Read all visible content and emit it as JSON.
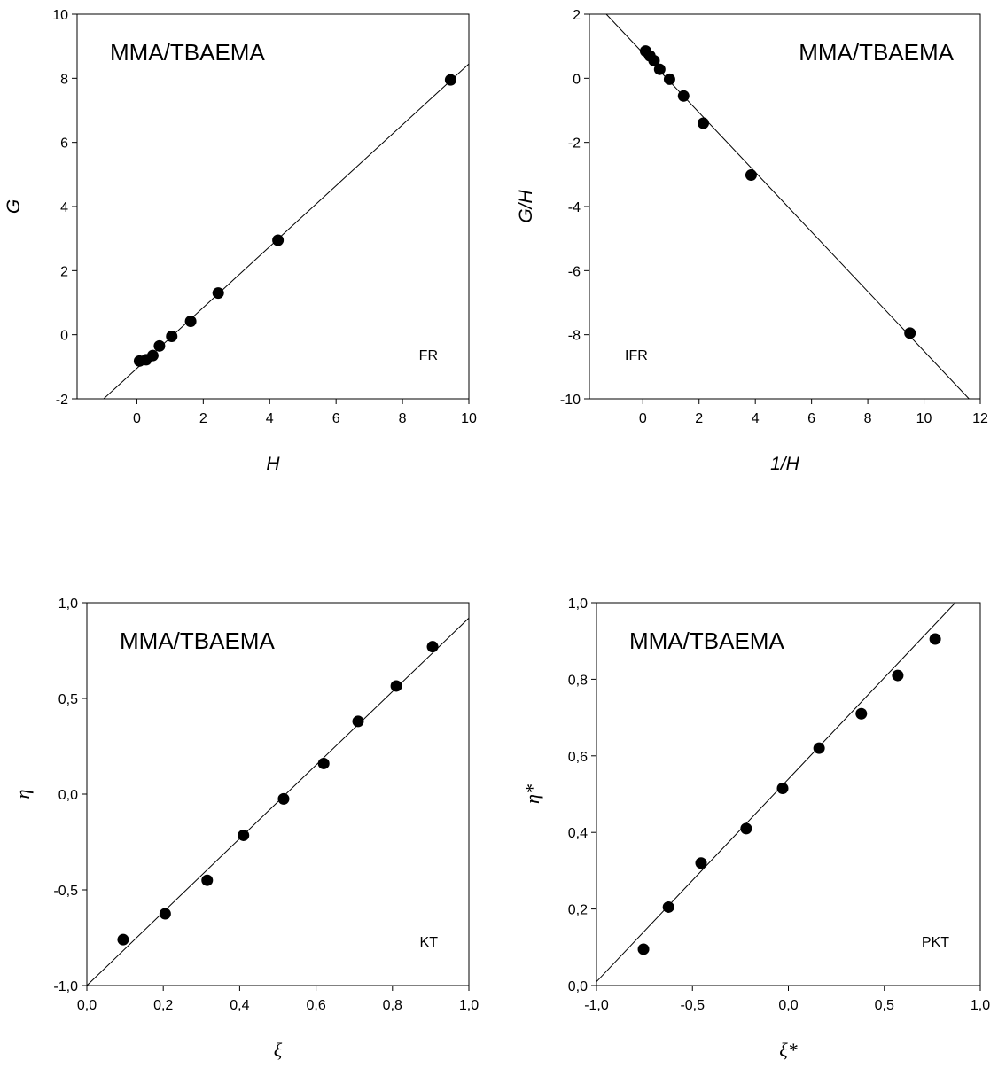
{
  "chart_data": [
    {
      "id": "fr",
      "type": "scatter",
      "xlabel": "H",
      "ylabel": "G",
      "label_font": "sans",
      "xlim": [
        -1.8,
        10
      ],
      "ylim": [
        -2,
        10
      ],
      "xticks": [
        0,
        2,
        4,
        6,
        8,
        10
      ],
      "yticks": [
        -2,
        0,
        2,
        4,
        6,
        8,
        10
      ],
      "xtick_labels": [
        "0",
        "2",
        "4",
        "6",
        "8",
        "10"
      ],
      "ytick_labels": [
        "-2",
        "0",
        "2",
        "4",
        "6",
        "8",
        "10"
      ],
      "title": "MMA/TBAEMA",
      "title_position": "top-left",
      "method": "FR",
      "method_position": "bottom-right",
      "grid": false,
      "series": [
        {
          "x": [
            0.08,
            0.28,
            0.48,
            0.68,
            1.05,
            1.62,
            2.45,
            4.25,
            9.45
          ],
          "y": [
            -0.82,
            -0.78,
            -0.65,
            -0.35,
            -0.05,
            0.42,
            1.3,
            2.95,
            7.95
          ]
        }
      ],
      "fit_line": {
        "x": [
          -1.0,
          10.0
        ],
        "y": [
          -2.0,
          8.45
        ]
      }
    },
    {
      "id": "ifr",
      "type": "scatter",
      "xlabel": "1/H",
      "ylabel": "G/H",
      "label_font": "sans",
      "xlim": [
        -1.9,
        12
      ],
      "ylim": [
        -10,
        2
      ],
      "xticks": [
        0,
        2,
        4,
        6,
        8,
        10,
        12
      ],
      "yticks": [
        -10,
        -8,
        -6,
        -4,
        -2,
        0,
        2
      ],
      "xtick_labels": [
        "0",
        "2",
        "4",
        "6",
        "8",
        "10",
        "12"
      ],
      "ytick_labels": [
        "-10",
        "-8",
        "-6",
        "-4",
        "-2",
        "0",
        "2"
      ],
      "title": "MMA/TBAEMA",
      "title_position": "top-right",
      "method": "IFR",
      "method_position": "bottom-left",
      "grid": false,
      "series": [
        {
          "x": [
            0.1,
            0.25,
            0.4,
            0.6,
            0.95,
            1.45,
            2.15,
            3.85,
            9.5
          ],
          "y": [
            0.85,
            0.7,
            0.55,
            0.28,
            -0.03,
            -0.55,
            -1.4,
            -3.02,
            -7.95
          ]
        }
      ],
      "fit_line": {
        "x": [
          -1.3,
          11.6
        ],
        "y": [
          2.0,
          -10.0
        ]
      }
    },
    {
      "id": "kt",
      "type": "scatter",
      "xlabel": "ξ",
      "ylabel": "η",
      "label_font": "serif",
      "xlim": [
        0.0,
        1.0
      ],
      "ylim": [
        -1.0,
        1.0
      ],
      "xticks": [
        0.0,
        0.2,
        0.4,
        0.6,
        0.8,
        1.0
      ],
      "yticks": [
        -1.0,
        -0.5,
        0.0,
        0.5,
        1.0
      ],
      "xtick_labels": [
        "0,0",
        "0,2",
        "0,4",
        "0,6",
        "0,8",
        "1,0"
      ],
      "ytick_labels": [
        "-1,0",
        "-0,5",
        "0,0",
        "0,5",
        "1,0"
      ],
      "title": "MMA/TBAEMA",
      "title_position": "top-left",
      "method": "KT",
      "method_position": "bottom-right",
      "grid": false,
      "series": [
        {
          "x": [
            0.095,
            0.205,
            0.315,
            0.41,
            0.515,
            0.62,
            0.71,
            0.81,
            0.905
          ],
          "y": [
            -0.76,
            -0.625,
            -0.45,
            -0.215,
            -0.025,
            0.16,
            0.38,
            0.565,
            0.77
          ]
        }
      ],
      "fit_line": {
        "x": [
          0.0,
          1.0
        ],
        "y": [
          -1.0,
          0.92
        ]
      }
    },
    {
      "id": "pkt",
      "type": "scatter",
      "xlabel": "ξ*",
      "ylabel": "η*",
      "label_font": "serif",
      "xlim": [
        -1.0,
        1.0
      ],
      "ylim": [
        0.0,
        1.0
      ],
      "xticks": [
        -1.0,
        -0.5,
        0.0,
        0.5,
        1.0
      ],
      "yticks": [
        0.0,
        0.2,
        0.4,
        0.6,
        0.8,
        1.0
      ],
      "xtick_labels": [
        "-1,0",
        "-0,5",
        "0,0",
        "0,5",
        "1,0"
      ],
      "ytick_labels": [
        "0,0",
        "0,2",
        "0,4",
        "0,6",
        "0,8",
        "1,0"
      ],
      "title": "MMA/TBAEMA",
      "title_position": "top-left",
      "method": "PKT",
      "method_position": "bottom-right",
      "grid": false,
      "series": [
        {
          "x": [
            -0.755,
            -0.625,
            -0.455,
            -0.22,
            -0.03,
            0.16,
            0.38,
            0.57,
            0.765
          ],
          "y": [
            0.095,
            0.205,
            0.32,
            0.41,
            0.515,
            0.62,
            0.71,
            0.81,
            0.905
          ]
        }
      ],
      "fit_line": {
        "x": [
          -1.0,
          0.87
        ],
        "y": [
          0.01,
          1.0
        ]
      }
    }
  ]
}
